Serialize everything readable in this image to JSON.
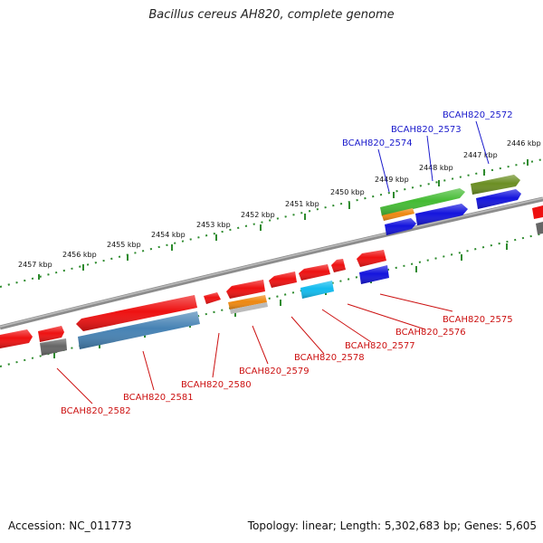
{
  "title": "Bacillus cereus AH820, complete genome",
  "footer": {
    "accession_label": "Accession:",
    "accession": "NC_011773",
    "topology_label": "Topology:",
    "topology": "linear",
    "length_label": "Length:",
    "length": "5,302,683 bp",
    "genes_label": "Genes:",
    "genes": "5,605"
  },
  "kbp_ticks": [
    "2446 kbp",
    "2447 kbp",
    "2448 kbp",
    "2449 kbp",
    "2450 kbp",
    "2451 kbp",
    "2452 kbp",
    "2453 kbp",
    "2454 kbp",
    "2455 kbp",
    "2456 kbp",
    "2457 kbp"
  ],
  "colors": {
    "backbone": "#8c8c8c",
    "ruler": "#2e8b2e",
    "label_blue": "#1a1acc",
    "label_red": "#cc1111",
    "red_feature": "#ee1111",
    "blue_feature": "#1414dd",
    "green_feature": "#44bb33",
    "olive_feature": "#6b8e23",
    "orange_feature": "#ee8811",
    "cyan_feature": "#11bbee",
    "steelblue_feature": "#4682b4",
    "grey_feature": "#666666"
  },
  "gene_labels": {
    "top": [
      "BCAH820_2572",
      "BCAH820_2573",
      "BCAH820_2574"
    ],
    "bottom": [
      "BCAH820_2575",
      "BCAH820_2576",
      "BCAH820_2577",
      "BCAH820_2578",
      "BCAH820_2579",
      "BCAH820_2580",
      "BCAH820_2581",
      "BCAH820_2582"
    ]
  }
}
